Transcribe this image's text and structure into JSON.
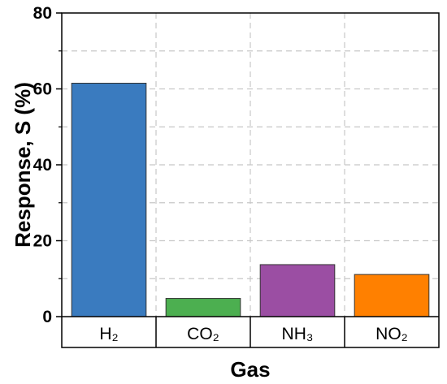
{
  "chart_data": {
    "type": "bar",
    "title": "",
    "xlabel": "Gas",
    "ylabel": "Response, S (%)",
    "ylim": [
      0,
      80
    ],
    "yticks": [
      0,
      20,
      40,
      60,
      80
    ],
    "grid": true,
    "categories": [
      "H₂",
      "CO₂",
      "NH₃",
      "NO₂"
    ],
    "values": [
      61.5,
      4.8,
      13.7,
      11.1
    ],
    "colors": [
      "#3a7bbf",
      "#4caf50",
      "#9b4ea3",
      "#ff8000"
    ]
  }
}
